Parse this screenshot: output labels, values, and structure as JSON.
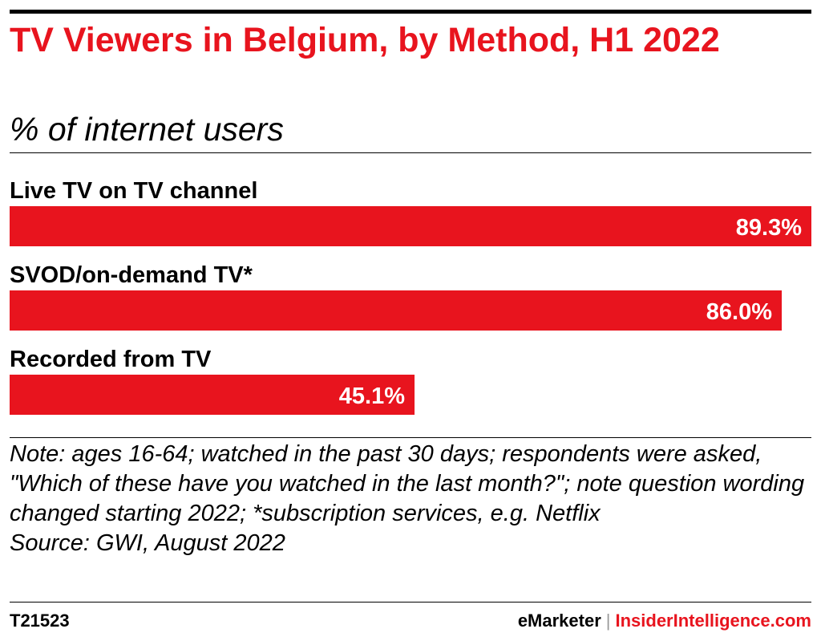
{
  "header": {
    "title": "TV Viewers in Belgium, by Method, H1 2022",
    "subtitle": "% of internet users"
  },
  "chart_data": {
    "type": "bar",
    "orientation": "horizontal",
    "categories": [
      "Live TV on TV channel",
      "SVOD/on-demand TV*",
      "Recorded from TV"
    ],
    "values": [
      89.3,
      86.0,
      45.1
    ],
    "value_labels": [
      "89.3%",
      "86.0%",
      "45.1%"
    ],
    "title": "TV Viewers in Belgium, by Method, H1 2022",
    "subtitle": "% of internet users",
    "xlim": [
      0,
      89.3
    ],
    "grid": false,
    "bar_color": "#e8141e"
  },
  "note": {
    "text": "Note: ages 16-64; watched in the past 30 days; respondents were asked, \"Which of these have you watched in the last month?\"; note question wording changed starting 2022; *subscription services, e.g. Netflix",
    "source": "Source: GWI, August 2022"
  },
  "footer": {
    "code": "T21523",
    "brand_emarketer": "eMarketer",
    "separator": "|",
    "brand_ii": "InsiderIntelligence.com"
  }
}
